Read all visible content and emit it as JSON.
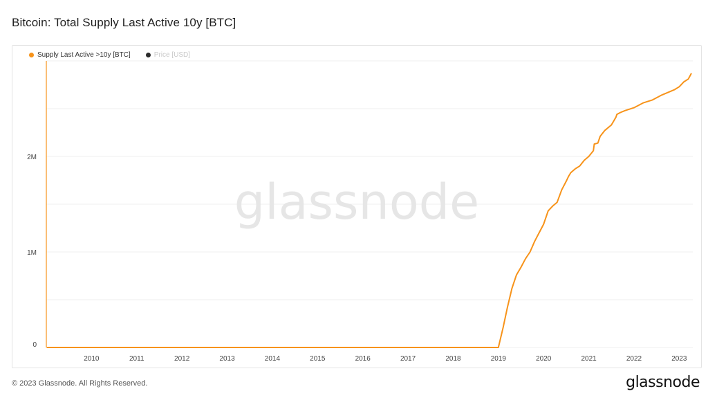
{
  "header": {
    "title": "Bitcoin: Total Supply Last Active 10y [BTC]"
  },
  "legend": {
    "items": [
      {
        "label": "Supply Last Active >10y [BTC]",
        "color": "#f7931a",
        "active": true
      },
      {
        "label": "Price [USD]",
        "color": "#2a2a2a",
        "active": false
      }
    ]
  },
  "watermark": "glassnode",
  "footer": {
    "copyright": "© 2023 Glassnode. All Rights Reserved.",
    "logo": "glassnode"
  },
  "colors": {
    "line": "#f7931a",
    "grid": "#efefef",
    "axis_text": "#444444",
    "watermark": "#e6e6e6"
  },
  "chart_data": {
    "type": "line",
    "title": "Bitcoin: Total Supply Last Active 10y [BTC]",
    "xlabel": "",
    "ylabel": "",
    "x_ticks": [
      "2010",
      "2011",
      "2012",
      "2013",
      "2014",
      "2015",
      "2016",
      "2017",
      "2018",
      "2019",
      "2020",
      "2021",
      "2022",
      "2023"
    ],
    "x_range": [
      2009.0,
      2023.3
    ],
    "y_ticks": [
      {
        "value": 0,
        "label": "0"
      },
      {
        "value": 1000000,
        "label": "1M"
      },
      {
        "value": 2000000,
        "label": "2M"
      }
    ],
    "y_gridlines": [
      0,
      500000,
      1000000,
      1500000,
      2000000,
      2500000,
      3000000
    ],
    "ylim": [
      0,
      3000000
    ],
    "grid": true,
    "legend_position": "top-left",
    "series": [
      {
        "name": "Supply Last Active >10y [BTC]",
        "x": [
          2009.01,
          2019.0,
          2019.1,
          2019.2,
          2019.3,
          2019.4,
          2019.5,
          2019.6,
          2019.7,
          2019.8,
          2019.9,
          2020.0,
          2020.1,
          2020.2,
          2020.3,
          2020.4,
          2020.5,
          2020.55,
          2020.6,
          2020.7,
          2020.8,
          2020.9,
          2021.0,
          2021.1,
          2021.12,
          2021.2,
          2021.25,
          2021.35,
          2021.5,
          2021.6,
          2021.62,
          2021.7,
          2021.8,
          2022.0,
          2022.2,
          2022.4,
          2022.6,
          2022.8,
          2022.9,
          2023.0,
          2023.1,
          2023.2,
          2023.27
        ],
        "y": [
          0,
          0,
          200000,
          420000,
          620000,
          760000,
          840000,
          930000,
          1000000,
          1110000,
          1200000,
          1290000,
          1430000,
          1480000,
          1520000,
          1650000,
          1740000,
          1790000,
          1830000,
          1870000,
          1900000,
          1960000,
          2000000,
          2060000,
          2130000,
          2140000,
          2210000,
          2270000,
          2330000,
          2410000,
          2440000,
          2460000,
          2480000,
          2510000,
          2560000,
          2590000,
          2640000,
          2680000,
          2700000,
          2730000,
          2780000,
          2810000,
          2870000
        ]
      }
    ]
  }
}
